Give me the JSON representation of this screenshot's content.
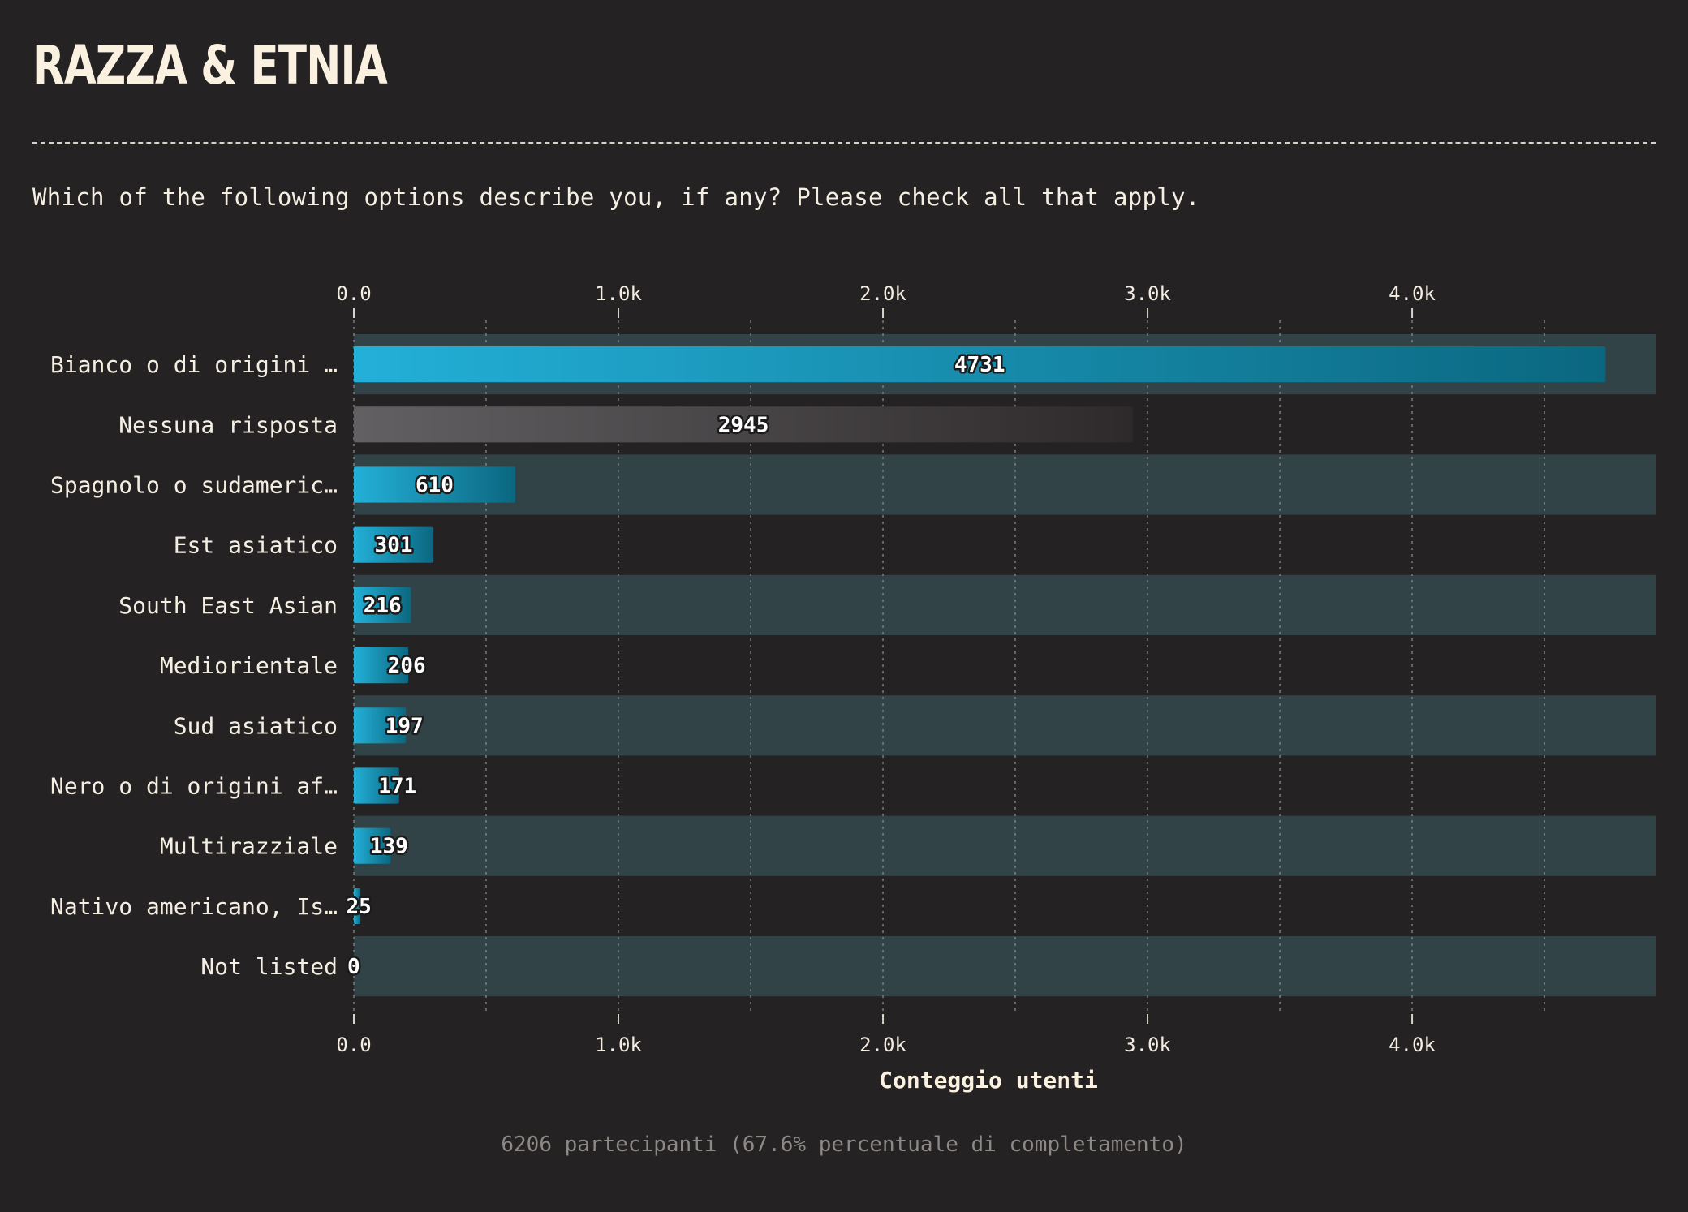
{
  "title": "RAZZA & ETNIA",
  "question": "Which of the following options describe you, if any? Please check all that apply.",
  "footer": "6206 partecipanti (67.6% percentuale di completamento)",
  "colors": {
    "background": "#252223",
    "band": "#314347",
    "bar_start": "#23b0d8",
    "bar_end": "#0b6780",
    "neutral_start": "#626062",
    "neutral_end": "#2e2a2c",
    "text": "#f5efe3",
    "muted": "#8d8985"
  },
  "chart_data": {
    "type": "bar",
    "orientation": "horizontal",
    "xlabel": "Conteggio utenti",
    "ylabel": "",
    "xlim": [
      0,
      4920
    ],
    "xticks": [
      0,
      1000,
      2000,
      3000,
      4000
    ],
    "xtick_labels": [
      "0.0",
      "1.0k",
      "2.0k",
      "3.0k",
      "4.0k"
    ],
    "grid": true,
    "axis_labels_position": "top-and-bottom",
    "categories": [
      "Bianco o di origini …",
      "Nessuna risposta",
      "Spagnolo o sudameric…",
      "Est asiatico",
      "South East Asian",
      "Mediorientale",
      "Sud asiatico",
      "Nero o di origini af…",
      "Multirazziale",
      "Nativo americano, Is…",
      "Not listed"
    ],
    "values": [
      4731,
      2945,
      610,
      301,
      216,
      206,
      197,
      171,
      139,
      25,
      0
    ],
    "neutral_categories": [
      "Nessuna risposta"
    ]
  }
}
